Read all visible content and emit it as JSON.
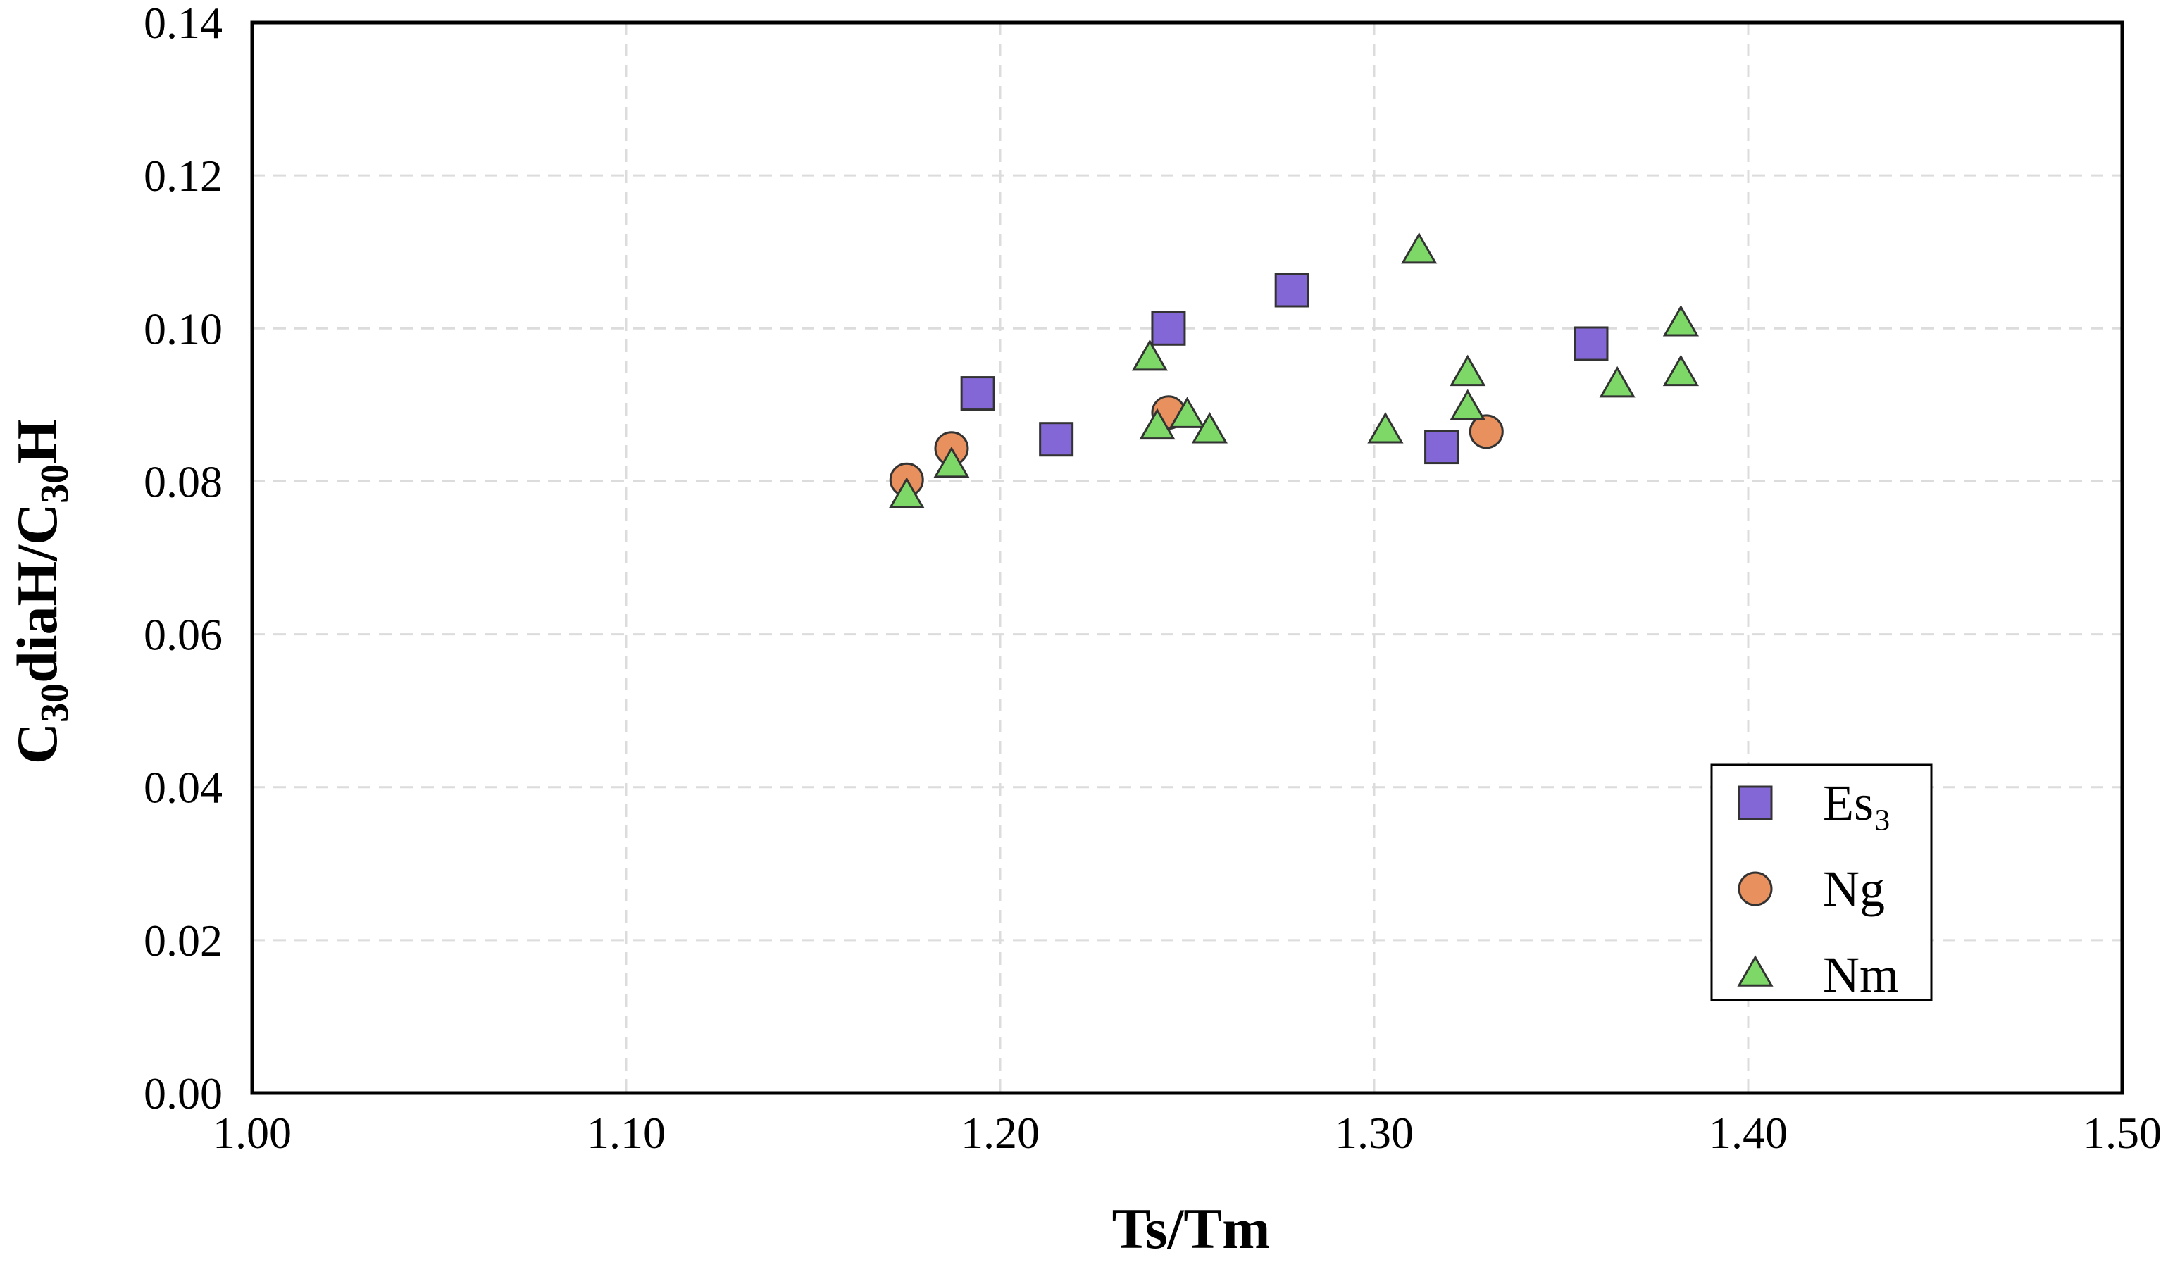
{
  "chart_data": {
    "type": "scatter",
    "title": "",
    "xlabel": "Ts/Tm",
    "ylabel": {
      "prefix1": "C",
      "sub1": "30",
      "mid": "diaH/C",
      "sub2": "30",
      "suffix": "H"
    },
    "xlim": [
      1.0,
      1.5
    ],
    "ylim": [
      0.0,
      0.14
    ],
    "x_ticks": [
      "1.00",
      "1.10",
      "1.20",
      "1.30",
      "1.40",
      "1.50"
    ],
    "y_ticks": [
      "0.00",
      "0.02",
      "0.04",
      "0.06",
      "0.08",
      "0.10",
      "0.12",
      "0.14"
    ],
    "grid": true,
    "legend_position": "bottom-right",
    "series": [
      {
        "name": "Es₃",
        "marker": "square",
        "color": "#8467d7",
        "points": [
          [
            1.194,
            0.0915
          ],
          [
            1.215,
            0.0855
          ],
          [
            1.245,
            0.1
          ],
          [
            1.278,
            0.105
          ],
          [
            1.318,
            0.0845
          ],
          [
            1.358,
            0.098
          ]
        ]
      },
      {
        "name": "Ng",
        "marker": "circle",
        "color": "#e8905e",
        "points": [
          [
            1.175,
            0.0802
          ],
          [
            1.187,
            0.0843
          ],
          [
            1.245,
            0.089
          ],
          [
            1.33,
            0.0865
          ]
        ]
      },
      {
        "name": "Nm",
        "marker": "triangle",
        "color": "#7ed868",
        "points": [
          [
            1.175,
            0.078
          ],
          [
            1.187,
            0.082
          ],
          [
            1.24,
            0.096
          ],
          [
            1.242,
            0.087
          ],
          [
            1.25,
            0.0885
          ],
          [
            1.256,
            0.0865
          ],
          [
            1.303,
            0.0865
          ],
          [
            1.312,
            0.11
          ],
          [
            1.325,
            0.094
          ],
          [
            1.325,
            0.0895
          ],
          [
            1.365,
            0.0925
          ],
          [
            1.382,
            0.1005
          ],
          [
            1.382,
            0.094
          ]
        ]
      }
    ]
  }
}
